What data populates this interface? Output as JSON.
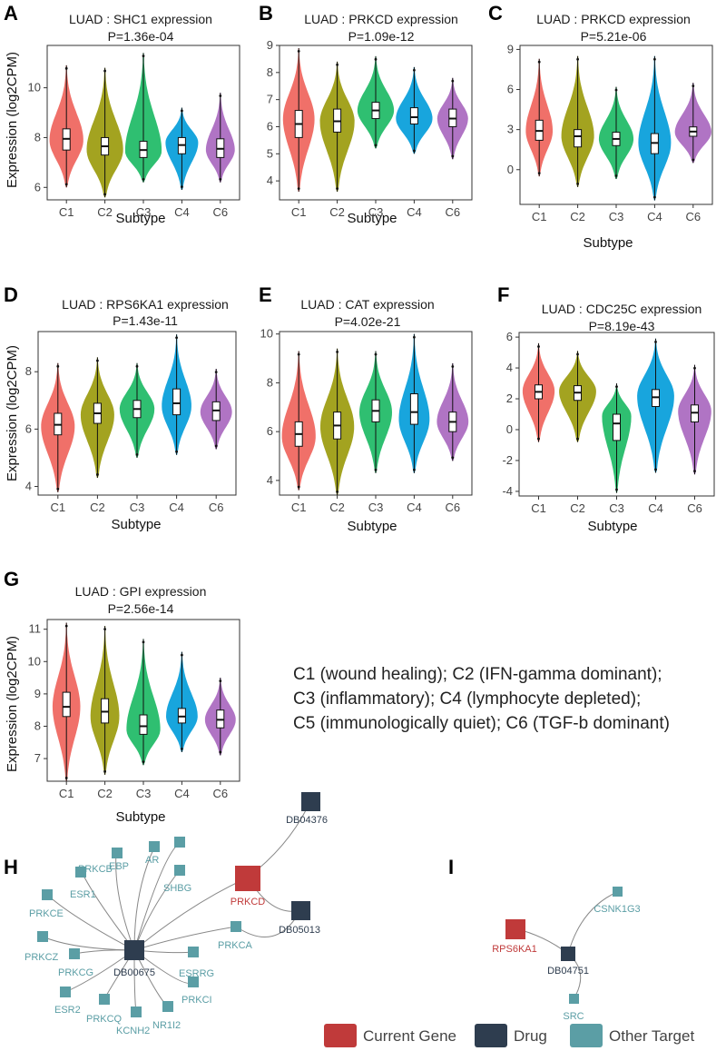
{
  "subtype_colors": {
    "C1": "#f07069",
    "C2": "#a3a320",
    "C3": "#2fbf71",
    "C4": "#18a5dd",
    "C6": "#b074c4"
  },
  "chart_data": [
    {
      "id": "A",
      "type": "violin",
      "title": "LUAD : SHC1 expression",
      "pvalue": "P=1.36e-04",
      "xlabel": "Subtype",
      "ylabel": "Expression (log2CPM)",
      "categories": [
        "C1",
        "C2",
        "C3",
        "C4",
        "C6"
      ],
      "ylim": [
        5.5,
        11.7
      ],
      "yticks": [
        6,
        8,
        10
      ],
      "series": [
        {
          "name": "C1",
          "min": 6.0,
          "q1": 7.5,
          "median": 7.95,
          "q3": 8.35,
          "max": 10.9,
          "peak": 7.9,
          "halfwidth": 0.88
        },
        {
          "name": "C2",
          "min": 5.6,
          "q1": 7.3,
          "median": 7.65,
          "q3": 8.0,
          "max": 10.8,
          "peak": 7.5,
          "halfwidth": 0.95
        },
        {
          "name": "C3",
          "min": 6.2,
          "q1": 7.2,
          "median": 7.5,
          "q3": 7.85,
          "max": 11.4,
          "peak": 7.45,
          "halfwidth": 0.95
        },
        {
          "name": "C4",
          "min": 5.9,
          "q1": 7.35,
          "median": 7.7,
          "q3": 8.0,
          "max": 9.2,
          "peak": 7.8,
          "halfwidth": 0.85
        },
        {
          "name": "C6",
          "min": 6.2,
          "q1": 7.2,
          "median": 7.55,
          "q3": 7.95,
          "max": 9.8,
          "peak": 7.5,
          "halfwidth": 0.75
        }
      ]
    },
    {
      "id": "B",
      "type": "violin",
      "title": "LUAD : PRKCD expression",
      "pvalue": "P=1.09e-12",
      "xlabel": "Subtype",
      "ylabel": "",
      "categories": [
        "C1",
        "C2",
        "C3",
        "C4",
        "C6"
      ],
      "ylim": [
        3.3,
        9.0
      ],
      "yticks": [
        4,
        5,
        6,
        7,
        8,
        9
      ],
      "series": [
        {
          "name": "C1",
          "min": 3.6,
          "q1": 5.6,
          "median": 6.1,
          "q3": 6.6,
          "max": 8.9,
          "peak": 6.3,
          "halfwidth": 0.82
        },
        {
          "name": "C2",
          "min": 3.6,
          "q1": 5.8,
          "median": 6.2,
          "q3": 6.65,
          "max": 8.4,
          "peak": 6.2,
          "halfwidth": 0.9
        },
        {
          "name": "C3",
          "min": 5.2,
          "q1": 6.3,
          "median": 6.6,
          "q3": 6.9,
          "max": 8.6,
          "peak": 6.6,
          "halfwidth": 0.95
        },
        {
          "name": "C4",
          "min": 5.0,
          "q1": 6.1,
          "median": 6.35,
          "q3": 6.7,
          "max": 8.2,
          "peak": 6.3,
          "halfwidth": 0.95
        },
        {
          "name": "C6",
          "min": 4.8,
          "q1": 6.0,
          "median": 6.3,
          "q3": 6.65,
          "max": 7.8,
          "peak": 6.3,
          "halfwidth": 0.8
        }
      ]
    },
    {
      "id": "C",
      "type": "violin",
      "title": "LUAD : PRKCD expression",
      "pvalue": "P=5.21e-06",
      "xlabel": "Subtype",
      "ylabel": "",
      "categories": [
        "C1",
        "C2",
        "C3",
        "C4",
        "C6"
      ],
      "ylim": [
        -2.6,
        9.3
      ],
      "yticks": [
        0,
        3,
        6,
        9
      ],
      "series": [
        {
          "name": "C1",
          "min": -0.5,
          "q1": 2.2,
          "median": 2.9,
          "q3": 3.7,
          "max": 8.3,
          "peak": 2.9,
          "halfwidth": 0.7
        },
        {
          "name": "C2",
          "min": -1.3,
          "q1": 1.7,
          "median": 2.5,
          "q3": 3.0,
          "max": 8.5,
          "peak": 2.5,
          "halfwidth": 0.85
        },
        {
          "name": "C3",
          "min": -0.7,
          "q1": 1.8,
          "median": 2.3,
          "q3": 2.8,
          "max": 6.2,
          "peak": 2.3,
          "halfwidth": 0.9
        },
        {
          "name": "C4",
          "min": -2.3,
          "q1": 1.2,
          "median": 2.0,
          "q3": 2.7,
          "max": 8.5,
          "peak": 2.0,
          "halfwidth": 0.85
        },
        {
          "name": "C6",
          "min": 0.5,
          "q1": 2.5,
          "median": 2.85,
          "q3": 3.2,
          "max": 6.5,
          "peak": 2.8,
          "halfwidth": 0.95
        }
      ]
    },
    {
      "id": "D",
      "type": "violin",
      "title": "LUAD : RPS6KA1 expression",
      "pvalue": "P=1.43e-11",
      "xlabel": "Subtype",
      "ylabel": "Expression (log2CPM)",
      "categories": [
        "C1",
        "C2",
        "C3",
        "C4",
        "C6"
      ],
      "ylim": [
        3.7,
        9.4
      ],
      "yticks": [
        4,
        6,
        8
      ],
      "series": [
        {
          "name": "C1",
          "min": 3.8,
          "q1": 5.8,
          "median": 6.15,
          "q3": 6.55,
          "max": 8.3,
          "peak": 6.1,
          "halfwidth": 0.85
        },
        {
          "name": "C2",
          "min": 4.3,
          "q1": 6.2,
          "median": 6.55,
          "q3": 6.9,
          "max": 8.5,
          "peak": 6.5,
          "halfwidth": 0.85
        },
        {
          "name": "C3",
          "min": 5.0,
          "q1": 6.4,
          "median": 6.7,
          "q3": 7.0,
          "max": 8.3,
          "peak": 6.7,
          "halfwidth": 0.88
        },
        {
          "name": "C4",
          "min": 5.1,
          "q1": 6.5,
          "median": 6.9,
          "q3": 7.4,
          "max": 9.3,
          "peak": 6.8,
          "halfwidth": 0.75
        },
        {
          "name": "C6",
          "min": 5.3,
          "q1": 6.3,
          "median": 6.65,
          "q3": 6.95,
          "max": 8.1,
          "peak": 6.6,
          "halfwidth": 0.8
        }
      ]
    },
    {
      "id": "E",
      "type": "violin",
      "title": "LUAD : CAT expression",
      "pvalue": "P=4.02e-21",
      "xlabel": "Subtype",
      "ylabel": "",
      "categories": [
        "C1",
        "C2",
        "C3",
        "C4",
        "C6"
      ],
      "ylim": [
        3.4,
        10.1
      ],
      "yticks": [
        4,
        6,
        8,
        10
      ],
      "series": [
        {
          "name": "C1",
          "min": 3.6,
          "q1": 5.4,
          "median": 5.9,
          "q3": 6.4,
          "max": 9.3,
          "peak": 5.8,
          "halfwidth": 0.88
        },
        {
          "name": "C2",
          "min": 3.4,
          "q1": 5.7,
          "median": 6.25,
          "q3": 6.8,
          "max": 9.4,
          "peak": 6.2,
          "halfwidth": 0.88
        },
        {
          "name": "C3",
          "min": 4.3,
          "q1": 6.4,
          "median": 6.85,
          "q3": 7.3,
          "max": 9.3,
          "peak": 6.8,
          "halfwidth": 0.85
        },
        {
          "name": "C4",
          "min": 4.3,
          "q1": 6.3,
          "median": 6.8,
          "q3": 7.55,
          "max": 10.0,
          "peak": 6.5,
          "halfwidth": 0.8
        },
        {
          "name": "C6",
          "min": 4.8,
          "q1": 6.0,
          "median": 6.4,
          "q3": 6.8,
          "max": 8.8,
          "peak": 6.4,
          "halfwidth": 0.82
        }
      ]
    },
    {
      "id": "F",
      "type": "violin",
      "title": "LUAD : CDC25C expression",
      "pvalue": "P=8.19e-43",
      "xlabel": "Subtype",
      "ylabel": "",
      "categories": [
        "C1",
        "C2",
        "C3",
        "C4",
        "C6"
      ],
      "ylim": [
        -4.3,
        6.3
      ],
      "yticks": [
        -4,
        -2,
        0,
        2,
        4,
        6
      ],
      "series": [
        {
          "name": "C1",
          "min": -0.8,
          "q1": 2.0,
          "median": 2.45,
          "q3": 2.9,
          "max": 5.6,
          "peak": 2.5,
          "halfwidth": 0.82
        },
        {
          "name": "C2",
          "min": -0.8,
          "q1": 1.9,
          "median": 2.4,
          "q3": 2.85,
          "max": 5.1,
          "peak": 2.5,
          "halfwidth": 0.95
        },
        {
          "name": "C3",
          "min": -4.1,
          "q1": -0.7,
          "median": 0.4,
          "q3": 1.0,
          "max": 3.0,
          "peak": 0.9,
          "halfwidth": 0.75
        },
        {
          "name": "C4",
          "min": -2.8,
          "q1": 1.5,
          "median": 2.1,
          "q3": 2.6,
          "max": 5.9,
          "peak": 2.2,
          "halfwidth": 0.95
        },
        {
          "name": "C6",
          "min": -2.9,
          "q1": 0.5,
          "median": 1.1,
          "q3": 1.6,
          "max": 4.2,
          "peak": 1.2,
          "halfwidth": 0.85
        }
      ]
    },
    {
      "id": "G",
      "type": "violin",
      "title": "LUAD : GPI expression",
      "pvalue": "P=2.56e-14",
      "xlabel": "Subtype",
      "ylabel": "Expression (log2CPM)",
      "categories": [
        "C1",
        "C2",
        "C3",
        "C4",
        "C6"
      ],
      "ylim": [
        6.3,
        11.3
      ],
      "yticks": [
        7,
        8,
        9,
        10,
        11
      ],
      "series": [
        {
          "name": "C1",
          "min": 6.3,
          "q1": 8.3,
          "median": 8.6,
          "q3": 9.05,
          "max": 11.2,
          "peak": 8.6,
          "halfwidth": 0.72
        },
        {
          "name": "C2",
          "min": 6.5,
          "q1": 8.1,
          "median": 8.45,
          "q3": 8.85,
          "max": 11.1,
          "peak": 8.3,
          "halfwidth": 0.75
        },
        {
          "name": "C3",
          "min": 6.8,
          "q1": 7.75,
          "median": 8.0,
          "q3": 8.35,
          "max": 10.7,
          "peak": 7.9,
          "halfwidth": 0.88
        },
        {
          "name": "C4",
          "min": 7.2,
          "q1": 8.1,
          "median": 8.3,
          "q3": 8.55,
          "max": 10.3,
          "peak": 8.3,
          "halfwidth": 0.82
        },
        {
          "name": "C6",
          "min": 7.1,
          "q1": 7.95,
          "median": 8.2,
          "q3": 8.5,
          "max": 9.5,
          "peak": 8.2,
          "halfwidth": 0.8
        }
      ]
    }
  ],
  "caption_lines": [
    "C1 (wound healing); C2 (IFN-gamma dominant);",
    "C3 (inflammatory); C4 (lymphocyte depleted);",
    "C5 (immunologically quiet); C6 (TGF-b dominant)"
  ],
  "networks": {
    "colors": {
      "gene": "#c03a3a",
      "drug": "#2e3d4f",
      "target": "#5b9ea5"
    },
    "legend": [
      {
        "kind": "gene",
        "label": "Current Gene"
      },
      {
        "kind": "drug",
        "label": "Drug"
      },
      {
        "kind": "target",
        "label": "Other Target"
      }
    ],
    "H_nodes": {
      "DB00675": "DB00675",
      "DB04376": "DB04376",
      "DB05013": "DB05013",
      "PRKCD": "PRKCD",
      "PRKCB": "PRKCB",
      "EBP": "EBP",
      "AR": "AR",
      "SHBG": "SHBG",
      "ESR1": "ESR1",
      "PRKCE": "PRKCE",
      "PRKCZ": "PRKCZ",
      "PRKCG": "PRKCG",
      "ESR2": "ESR2",
      "PRKCQ": "PRKCQ",
      "KCNH2": "KCNH2",
      "NR1I2": "NR1I2",
      "PRKCI": "PRKCI",
      "ESRRG": "ESRRG",
      "PRKCA": "PRKCA"
    },
    "I_nodes": {
      "RPS6KA1": "RPS6KA1",
      "DB04751": "DB04751",
      "CSNK1G3": "CSNK1G3",
      "SRC": "SRC"
    }
  },
  "panel_letters": [
    "A",
    "B",
    "C",
    "D",
    "E",
    "F",
    "G",
    "H",
    "I"
  ]
}
